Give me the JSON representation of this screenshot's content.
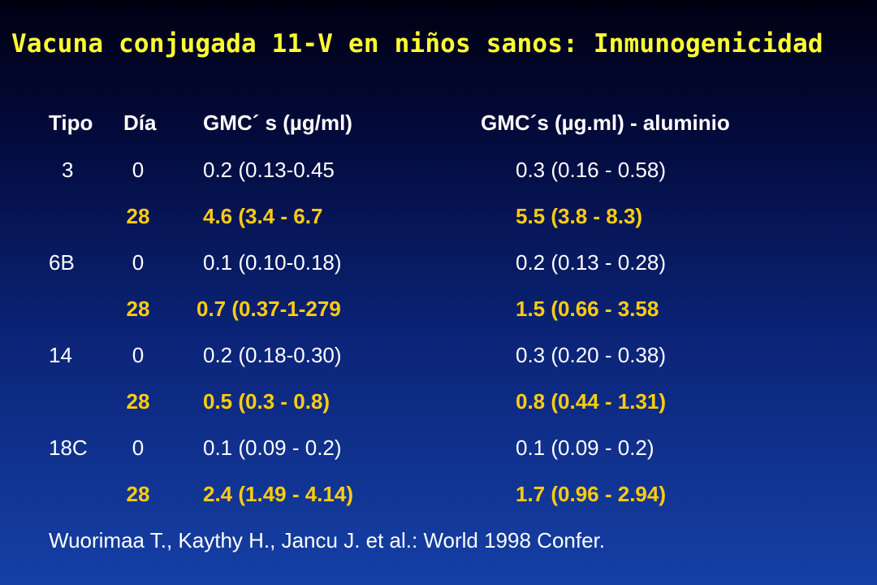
{
  "title": "Vacuna conjugada 11-V en niños sanos: Inmunogenicidad",
  "headers": {
    "tipo": "Tipo",
    "dia": "Día",
    "gmc": "GMC´ s (µg/ml)",
    "gmc_aluminio": "GMC´s (µg.ml) - aluminio"
  },
  "rows": [
    {
      "tipo": "3",
      "dia": "0",
      "gmc": "0.2 (0.13-0.45",
      "gmc_aluminio": "0.3 (0.16 - 0.58)"
    },
    {
      "tipo": "",
      "dia": "28",
      "gmc": "4.6 (3.4 - 6.7",
      "gmc_aluminio": "5.5 (3.8 - 8.3)"
    },
    {
      "tipo": "6B",
      "dia": "0",
      "gmc": "0.1 (0.10-0.18)",
      "gmc_aluminio": "0.2 (0.13 - 0.28)"
    },
    {
      "tipo": "",
      "dia": "28",
      "gmc": "0.7 (0.37-1-279",
      "gmc_aluminio": "1.5 (0.66 - 3.58"
    },
    {
      "tipo": "14",
      "dia": "0",
      "gmc": "0.2 (0.18-0.30)",
      "gmc_aluminio": "0.3 (0.20 - 0.38)"
    },
    {
      "tipo": "",
      "dia": "28",
      "gmc": "0.5 (0.3 - 0.8)",
      "gmc_aluminio": "0.8 (0.44 - 1.31)"
    },
    {
      "tipo": "18C",
      "dia": "0",
      "gmc": "0.1 (0.09 - 0.2)",
      "gmc_aluminio": "0.1 (0.09 - 0.2)"
    },
    {
      "tipo": "",
      "dia": "28",
      "gmc": "2.4 (1.49 - 4.14)",
      "gmc_aluminio": "1.7 (0.96 - 2.94)"
    }
  ],
  "footer": "Wuorimaa T., Kaythy H., Jancu J. et al.: World 1998 Confer.",
  "colors": {
    "title": "#ffff33",
    "highlight": "#ffcc11",
    "text": "#ffffff"
  }
}
